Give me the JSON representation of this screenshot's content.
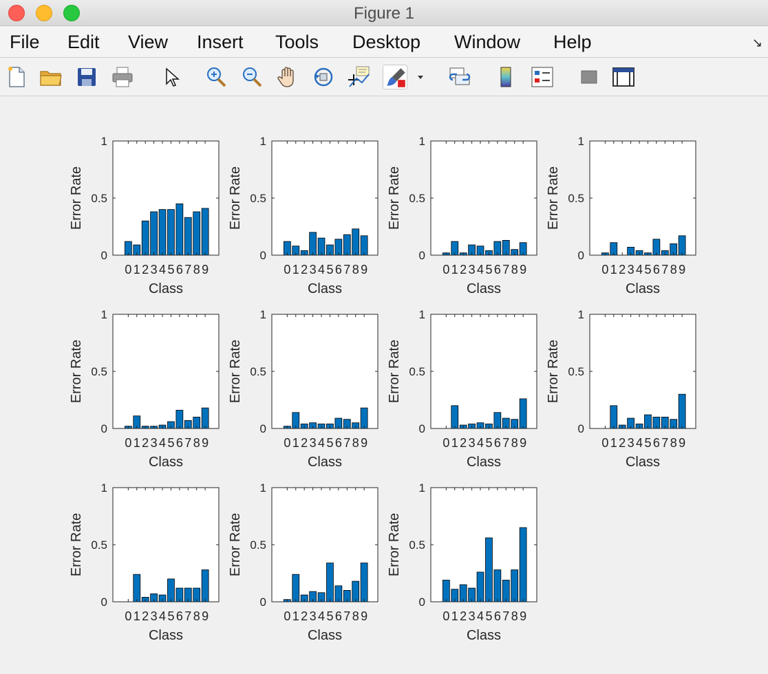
{
  "window": {
    "title": "Figure 1",
    "menu": [
      "File",
      "Edit",
      "View",
      "Insert",
      "Tools",
      "Desktop",
      "Window",
      "Help"
    ],
    "toolbar": [
      {
        "name": "new-figure-icon"
      },
      {
        "name": "open-file-icon"
      },
      {
        "name": "save-icon"
      },
      {
        "name": "print-icon"
      },
      {
        "name": "edit-plot-cursor-icon"
      },
      {
        "name": "zoom-in-icon"
      },
      {
        "name": "zoom-out-icon"
      },
      {
        "name": "pan-hand-icon"
      },
      {
        "name": "rotate-3d-icon"
      },
      {
        "name": "data-cursor-icon"
      },
      {
        "name": "brush-icon"
      },
      {
        "name": "brush-dropdown-icon"
      },
      {
        "name": "link-plot-icon"
      },
      {
        "name": "insert-colorbar-icon"
      },
      {
        "name": "insert-legend-icon"
      },
      {
        "name": "hide-plot-tools-icon"
      },
      {
        "name": "show-plot-tools-icon"
      }
    ],
    "undock_glyph": "↘"
  },
  "colors": {
    "bar": "#0072BD",
    "bar_edge": "#000000",
    "axes_bg": "#ffffff",
    "figure_bg": "#f0f0f0"
  },
  "chart_data": [
    {
      "type": "bar",
      "categories": [
        "0",
        "1",
        "2",
        "3",
        "4",
        "5",
        "6",
        "7",
        "8",
        "9"
      ],
      "values": [
        0.12,
        0.09,
        0.3,
        0.38,
        0.4,
        0.4,
        0.45,
        0.33,
        0.38,
        0.41
      ],
      "xlabel": "Class",
      "ylabel": "Error Rate",
      "ylim": [
        0,
        1
      ],
      "yticks": [
        "0",
        "0.5",
        "1"
      ]
    },
    {
      "type": "bar",
      "categories": [
        "0",
        "1",
        "2",
        "3",
        "4",
        "5",
        "6",
        "7",
        "8",
        "9"
      ],
      "values": [
        0.12,
        0.08,
        0.04,
        0.2,
        0.15,
        0.09,
        0.14,
        0.18,
        0.23,
        0.17
      ],
      "xlabel": "Class",
      "ylabel": "Error Rate",
      "ylim": [
        0,
        1
      ],
      "yticks": [
        "0",
        "0.5",
        "1"
      ]
    },
    {
      "type": "bar",
      "categories": [
        "0",
        "1",
        "2",
        "3",
        "4",
        "5",
        "6",
        "7",
        "8",
        "9"
      ],
      "values": [
        0.02,
        0.12,
        0.02,
        0.09,
        0.08,
        0.04,
        0.12,
        0.13,
        0.05,
        0.11
      ],
      "xlabel": "Class",
      "ylabel": "Error Rate",
      "ylim": [
        0,
        1
      ],
      "yticks": [
        "0",
        "0.5",
        "1"
      ]
    },
    {
      "type": "bar",
      "categories": [
        "0",
        "1",
        "2",
        "3",
        "4",
        "5",
        "6",
        "7",
        "8",
        "9"
      ],
      "values": [
        0.02,
        0.11,
        0.0,
        0.07,
        0.04,
        0.02,
        0.14,
        0.04,
        0.1,
        0.17
      ],
      "xlabel": "Class",
      "ylabel": "Error Rate",
      "ylim": [
        0,
        1
      ],
      "yticks": [
        "0",
        "0.5",
        "1"
      ]
    },
    {
      "type": "bar",
      "categories": [
        "0",
        "1",
        "2",
        "3",
        "4",
        "5",
        "6",
        "7",
        "8",
        "9"
      ],
      "values": [
        0.02,
        0.11,
        0.02,
        0.02,
        0.03,
        0.06,
        0.16,
        0.07,
        0.1,
        0.18
      ],
      "xlabel": "Class",
      "ylabel": "Error Rate",
      "ylim": [
        0,
        1
      ],
      "yticks": [
        "0",
        "0.5",
        "1"
      ]
    },
    {
      "type": "bar",
      "categories": [
        "0",
        "1",
        "2",
        "3",
        "4",
        "5",
        "6",
        "7",
        "8",
        "9"
      ],
      "values": [
        0.02,
        0.14,
        0.04,
        0.05,
        0.04,
        0.04,
        0.09,
        0.08,
        0.05,
        0.18
      ],
      "xlabel": "Class",
      "ylabel": "Error Rate",
      "ylim": [
        0,
        1
      ],
      "yticks": [
        "0",
        "0.5",
        "1"
      ]
    },
    {
      "type": "bar",
      "categories": [
        "0",
        "1",
        "2",
        "3",
        "4",
        "5",
        "6",
        "7",
        "8",
        "9"
      ],
      "values": [
        0.0,
        0.2,
        0.03,
        0.04,
        0.05,
        0.04,
        0.14,
        0.09,
        0.08,
        0.26
      ],
      "xlabel": "Class",
      "ylabel": "Error Rate",
      "ylim": [
        0,
        1
      ],
      "yticks": [
        "0",
        "0.5",
        "1"
      ]
    },
    {
      "type": "bar",
      "categories": [
        "0",
        "1",
        "2",
        "3",
        "4",
        "5",
        "6",
        "7",
        "8",
        "9"
      ],
      "values": [
        0.0,
        0.2,
        0.03,
        0.09,
        0.04,
        0.12,
        0.1,
        0.1,
        0.08,
        0.3
      ],
      "xlabel": "Class",
      "ylabel": "Error Rate",
      "ylim": [
        0,
        1
      ],
      "yticks": [
        "0",
        "0.5",
        "1"
      ]
    },
    {
      "type": "bar",
      "categories": [
        "0",
        "1",
        "2",
        "3",
        "4",
        "5",
        "6",
        "7",
        "8",
        "9"
      ],
      "values": [
        0.0,
        0.24,
        0.04,
        0.07,
        0.06,
        0.2,
        0.12,
        0.12,
        0.12,
        0.28
      ],
      "xlabel": "Class",
      "ylabel": "Error Rate",
      "ylim": [
        0,
        1
      ],
      "yticks": [
        "0",
        "0.5",
        "1"
      ]
    },
    {
      "type": "bar",
      "categories": [
        "0",
        "1",
        "2",
        "3",
        "4",
        "5",
        "6",
        "7",
        "8",
        "9"
      ],
      "values": [
        0.02,
        0.24,
        0.06,
        0.09,
        0.08,
        0.34,
        0.14,
        0.1,
        0.18,
        0.34
      ],
      "xlabel": "Class",
      "ylabel": "Error Rate",
      "ylim": [
        0,
        1
      ],
      "yticks": [
        "0",
        "0.5",
        "1"
      ]
    },
    {
      "type": "bar",
      "categories": [
        "0",
        "1",
        "2",
        "3",
        "4",
        "5",
        "6",
        "7",
        "8",
        "9"
      ],
      "values": [
        0.19,
        0.11,
        0.15,
        0.12,
        0.26,
        0.56,
        0.28,
        0.19,
        0.28,
        0.65
      ],
      "xlabel": "Class",
      "ylabel": "Error Rate",
      "ylim": [
        0,
        1
      ],
      "yticks": [
        "0",
        "0.5",
        "1"
      ]
    }
  ]
}
